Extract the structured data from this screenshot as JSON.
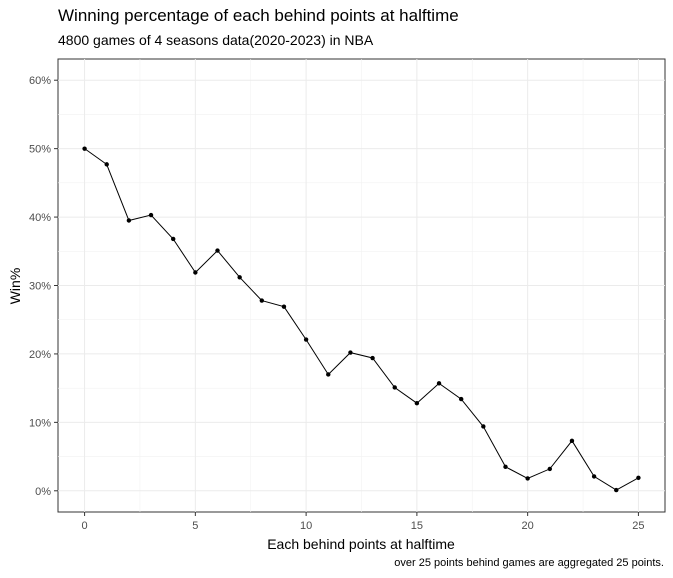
{
  "chart_data": {
    "type": "line",
    "title": "Winning percentage of each behind points at halftime",
    "subtitle": "4800 games of 4 seasons data(2020-2023) in NBA",
    "caption": "over 25 points behind games are aggregated 25 points.",
    "xlabel": "Each behind points at halftime",
    "ylabel": "Win%",
    "xlim": [
      -1.2,
      26.2
    ],
    "ylim": [
      -3.1,
      63.1
    ],
    "x_ticks": [
      0,
      5,
      10,
      15,
      20,
      25
    ],
    "x_tick_labels": [
      "0",
      "5",
      "10",
      "15",
      "20",
      "25"
    ],
    "y_ticks": [
      0,
      10,
      20,
      30,
      40,
      50,
      60
    ],
    "y_tick_labels": [
      "0%",
      "10%",
      "20%",
      "30%",
      "40%",
      "50%",
      "60%"
    ],
    "grid": true,
    "line_color": "#000000",
    "grid_color": "#ebebeb",
    "x": [
      0,
      1,
      2,
      3,
      4,
      5,
      6,
      7,
      8,
      9,
      10,
      11,
      12,
      13,
      14,
      15,
      16,
      17,
      18,
      19,
      20,
      21,
      22,
      23,
      24,
      25
    ],
    "values": [
      50.0,
      47.7,
      39.5,
      40.3,
      36.8,
      31.9,
      35.1,
      31.2,
      27.8,
      26.9,
      22.1,
      17.0,
      20.2,
      19.4,
      15.1,
      12.8,
      15.7,
      13.4,
      9.4,
      3.5,
      1.8,
      3.2,
      7.3,
      2.1,
      0.1,
      1.9
    ]
  }
}
